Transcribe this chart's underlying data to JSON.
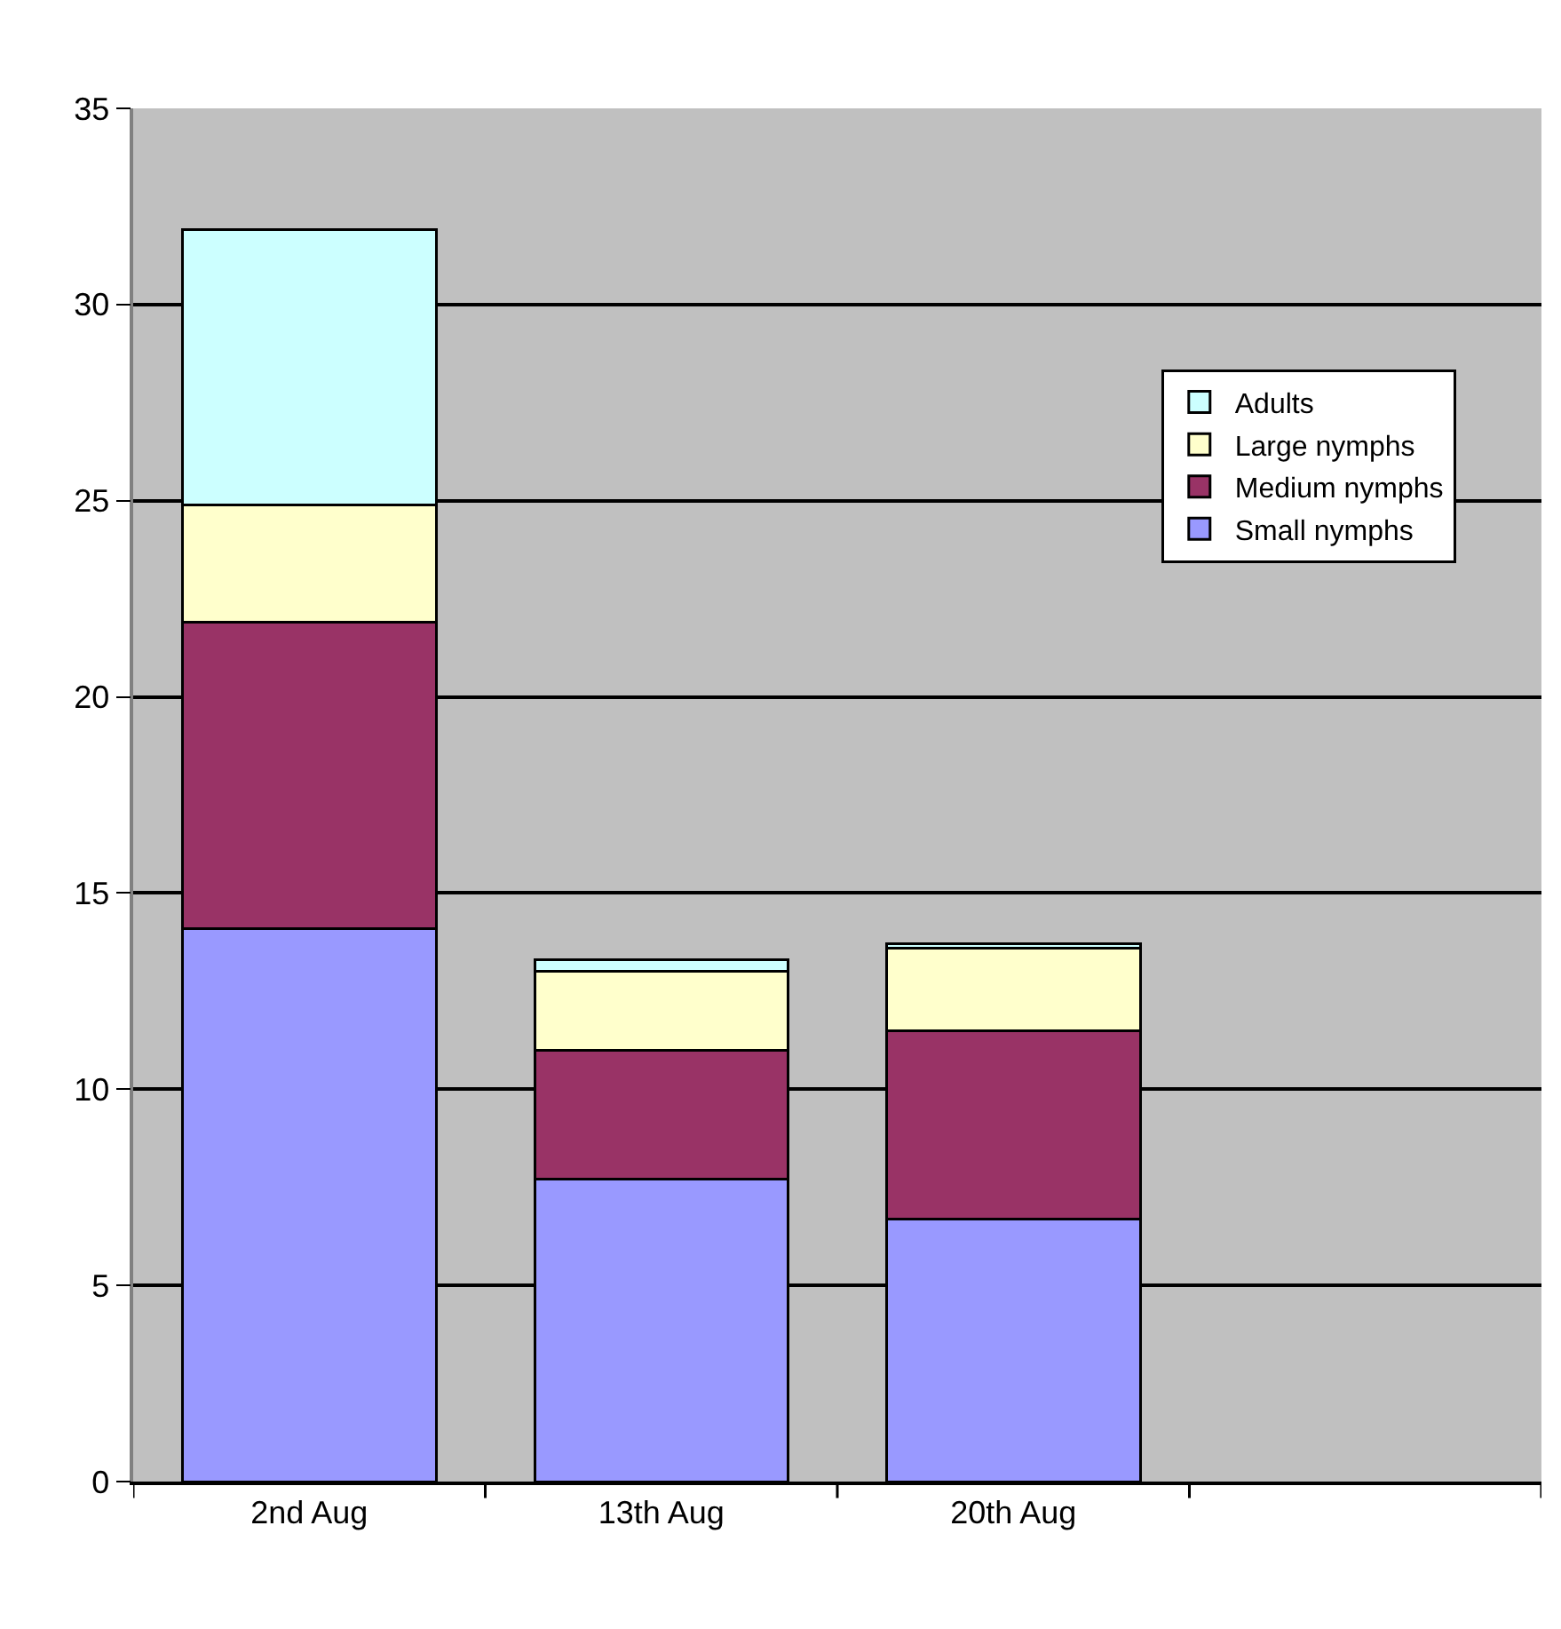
{
  "chart_data": {
    "type": "bar",
    "stacked": true,
    "categories": [
      "2nd Aug",
      "13th Aug",
      "20th Aug",
      null
    ],
    "series": [
      {
        "name": "Small nymphs",
        "color": "#9999ff",
        "values": [
          14.1,
          7.7,
          6.7,
          null
        ]
      },
      {
        "name": "Medium nymphs",
        "color": "#993366",
        "values": [
          7.8,
          3.3,
          4.8,
          null
        ]
      },
      {
        "name": "Large nymphs",
        "color": "#ffffcc",
        "values": [
          3.0,
          2.0,
          2.1,
          null
        ]
      },
      {
        "name": "Adults",
        "color": "#ccffff",
        "values": [
          7.0,
          0.3,
          0.1,
          null
        ]
      }
    ],
    "ylim": [
      0,
      35
    ],
    "yticks": [
      0,
      5,
      10,
      15,
      20,
      25,
      30,
      35
    ],
    "grid": "y",
    "legend": "top right"
  }
}
